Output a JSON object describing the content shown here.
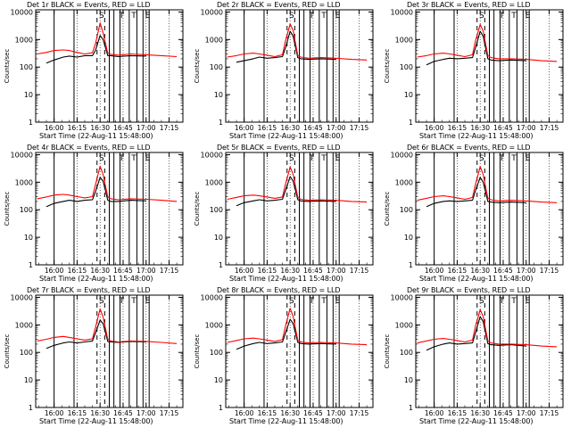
{
  "colors": {
    "events": "#000000",
    "lld": "#ff0000",
    "axes": "#000000",
    "background": "#ffffff"
  },
  "chart_data": [
    {
      "type": "line",
      "title": "Det 1r BLACK = Events, RED = LLD",
      "xlabel": "Start Time (22-Aug-11 15:48:00)",
      "ylabel": "Counts/sec",
      "xticks": [
        "16:00",
        "16:15",
        "16:30",
        "16:45",
        "17:00",
        "17:15"
      ],
      "yticks": [
        "1",
        "10",
        "100",
        "1000",
        "10000"
      ],
      "ylim": [
        1,
        12000
      ],
      "yscale": "log",
      "x": [
        "15:49",
        "15:55",
        "16:00",
        "16:06",
        "16:10",
        "16:15",
        "16:20",
        "16:25",
        "16:27",
        "16:30",
        "16:32",
        "16:35",
        "16:37",
        "16:42",
        "16:50",
        "17:00",
        "17:10",
        "17:20"
      ],
      "series": [
        {
          "name": "Events",
          "values": [
            null,
            140,
            180,
            230,
            250,
            230,
            260,
            260,
            400,
            1400,
            1000,
            260,
            260,
            240,
            260,
            250,
            null,
            null
          ]
        },
        {
          "name": "LLD",
          "values": [
            300,
            340,
            400,
            420,
            400,
            340,
            300,
            330,
            700,
            4000,
            1700,
            320,
            290,
            270,
            300,
            280,
            260,
            240
          ]
        }
      ]
    },
    {
      "type": "line",
      "title": "Det 2r BLACK = Events, RED = LLD",
      "xlabel": "Start Time (22-Aug-11 15:48:00)",
      "ylabel": "Counts/sec",
      "xticks": [
        "16:00",
        "16:15",
        "16:30",
        "16:45",
        "17:00",
        "17:15"
      ],
      "yticks": [
        "1",
        "10",
        "100",
        "1000",
        "10000"
      ],
      "ylim": [
        1,
        12000
      ],
      "yscale": "log",
      "x": [
        "15:49",
        "15:55",
        "16:00",
        "16:06",
        "16:10",
        "16:15",
        "16:20",
        "16:25",
        "16:27",
        "16:30",
        "16:32",
        "16:35",
        "16:37",
        "16:42",
        "16:50",
        "17:00",
        "17:10",
        "17:20"
      ],
      "series": [
        {
          "name": "Events",
          "values": [
            null,
            150,
            170,
            200,
            230,
            210,
            220,
            240,
            500,
            2000,
            1300,
            220,
            200,
            190,
            200,
            190,
            null,
            null
          ]
        },
        {
          "name": "LLD",
          "values": [
            230,
            260,
            300,
            320,
            300,
            270,
            240,
            280,
            900,
            3700,
            2100,
            260,
            230,
            210,
            220,
            210,
            190,
            180
          ]
        }
      ]
    },
    {
      "type": "line",
      "title": "Det 3r BLACK = Events, RED = LLD",
      "xlabel": "Start Time (22-Aug-11 15:48:00)",
      "ylabel": "Counts/sec",
      "xticks": [
        "16:00",
        "16:15",
        "16:30",
        "16:45",
        "17:00",
        "17:15"
      ],
      "yticks": [
        "1",
        "10",
        "100",
        "1000",
        "10000"
      ],
      "ylim": [
        1,
        12000
      ],
      "yscale": "log",
      "x": [
        "15:49",
        "15:55",
        "16:00",
        "16:06",
        "16:10",
        "16:15",
        "16:20",
        "16:25",
        "16:27",
        "16:30",
        "16:32",
        "16:35",
        "16:37",
        "16:42",
        "16:50",
        "17:00",
        "17:10",
        "17:20"
      ],
      "series": [
        {
          "name": "Events",
          "values": [
            null,
            120,
            160,
            190,
            210,
            200,
            210,
            220,
            500,
            2000,
            1300,
            200,
            180,
            170,
            180,
            170,
            null,
            null
          ]
        },
        {
          "name": "LLD",
          "values": [
            230,
            260,
            300,
            320,
            300,
            270,
            240,
            280,
            900,
            3500,
            2000,
            260,
            220,
            200,
            200,
            190,
            170,
            160
          ]
        }
      ]
    },
    {
      "type": "line",
      "title": "Det 4r BLACK = Events, RED = LLD",
      "xlabel": "Start Time (22-Aug-11 15:48:00)",
      "ylabel": "Counts/sec",
      "xticks": [
        "16:00",
        "16:15",
        "16:30",
        "16:45",
        "17:00",
        "17:15"
      ],
      "yticks": [
        "1",
        "10",
        "100",
        "1000",
        "10000"
      ],
      "ylim": [
        1,
        12000
      ],
      "yscale": "log",
      "x": [
        "15:49",
        "15:55",
        "16:00",
        "16:06",
        "16:10",
        "16:15",
        "16:20",
        "16:25",
        "16:27",
        "16:30",
        "16:32",
        "16:35",
        "16:37",
        "16:42",
        "16:50",
        "17:00",
        "17:10",
        "17:20"
      ],
      "series": [
        {
          "name": "Events",
          "values": [
            null,
            130,
            170,
            200,
            220,
            200,
            220,
            230,
            450,
            1500,
            1100,
            220,
            200,
            200,
            220,
            210,
            null,
            null
          ]
        },
        {
          "name": "LLD",
          "values": [
            250,
            290,
            340,
            360,
            340,
            300,
            270,
            300,
            800,
            3800,
            1900,
            290,
            250,
            230,
            250,
            240,
            220,
            200
          ]
        }
      ]
    },
    {
      "type": "line",
      "title": "Det 5r BLACK = Events, RED = LLD",
      "xlabel": "Start Time (22-Aug-11 15:48:00)",
      "ylabel": "Counts/sec",
      "xticks": [
        "16:00",
        "16:15",
        "16:30",
        "16:45",
        "17:00",
        "17:15"
      ],
      "yticks": [
        "1",
        "10",
        "100",
        "1000",
        "10000"
      ],
      "ylim": [
        1,
        12000
      ],
      "yscale": "log",
      "x": [
        "15:49",
        "15:55",
        "16:00",
        "16:06",
        "16:10",
        "16:15",
        "16:20",
        "16:25",
        "16:27",
        "16:30",
        "16:32",
        "16:35",
        "16:37",
        "16:42",
        "16:50",
        "17:00",
        "17:10",
        "17:20"
      ],
      "series": [
        {
          "name": "Events",
          "values": [
            null,
            140,
            180,
            210,
            230,
            210,
            220,
            240,
            500,
            1600,
            1100,
            230,
            210,
            200,
            210,
            200,
            null,
            null
          ]
        },
        {
          "name": "LLD",
          "values": [
            240,
            280,
            320,
            340,
            320,
            290,
            260,
            290,
            850,
            3600,
            1900,
            280,
            240,
            220,
            230,
            220,
            200,
            190
          ]
        }
      ]
    },
    {
      "type": "line",
      "title": "Det 6r BLACK = Events, RED = LLD",
      "xlabel": "Start Time (22-Aug-11 15:48:00)",
      "ylabel": "Counts/sec",
      "xticks": [
        "16:00",
        "16:15",
        "16:30",
        "16:45",
        "17:00",
        "17:15"
      ],
      "yticks": [
        "1",
        "10",
        "100",
        "1000",
        "10000"
      ],
      "ylim": [
        1,
        12000
      ],
      "yscale": "log",
      "x": [
        "15:49",
        "15:55",
        "16:00",
        "16:06",
        "16:10",
        "16:15",
        "16:20",
        "16:25",
        "16:27",
        "16:30",
        "16:32",
        "16:35",
        "16:37",
        "16:42",
        "16:50",
        "17:00",
        "17:10",
        "17:20"
      ],
      "series": [
        {
          "name": "Events",
          "values": [
            null,
            130,
            170,
            200,
            210,
            200,
            210,
            220,
            500,
            1500,
            1000,
            200,
            190,
            180,
            190,
            180,
            null,
            null
          ]
        },
        {
          "name": "LLD",
          "values": [
            220,
            260,
            300,
            320,
            300,
            270,
            240,
            280,
            850,
            3700,
            1900,
            260,
            230,
            210,
            220,
            210,
            190,
            180
          ]
        }
      ]
    },
    {
      "type": "line",
      "title": "Det 7r BLACK = Events, RED = LLD",
      "xlabel": "Start Time (22-Aug-11 15:48:00)",
      "ylabel": "Counts/sec",
      "xticks": [
        "16:00",
        "16:15",
        "16:30",
        "16:45",
        "17:00",
        "17:15"
      ],
      "yticks": [
        "1",
        "10",
        "100",
        "1000",
        "10000"
      ],
      "ylim": [
        1,
        12000
      ],
      "yscale": "log",
      "x": [
        "15:49",
        "15:55",
        "16:00",
        "16:06",
        "16:10",
        "16:15",
        "16:20",
        "16:25",
        "16:27",
        "16:30",
        "16:32",
        "16:35",
        "16:37",
        "16:42",
        "16:50",
        "17:00",
        "17:10",
        "17:20"
      ],
      "series": [
        {
          "name": "Events",
          "values": [
            null,
            140,
            180,
            220,
            240,
            220,
            240,
            260,
            500,
            1500,
            1100,
            250,
            240,
            230,
            250,
            240,
            null,
            null
          ]
        },
        {
          "name": "LLD",
          "values": [
            260,
            300,
            350,
            380,
            350,
            310,
            280,
            310,
            800,
            3800,
            1900,
            300,
            260,
            240,
            260,
            250,
            230,
            210
          ]
        }
      ]
    },
    {
      "type": "line",
      "title": "Det 8r BLACK = Events, RED = LLD",
      "xlabel": "Start Time (22-Aug-11 15:48:00)",
      "ylabel": "Counts/sec",
      "xticks": [
        "16:00",
        "16:15",
        "16:30",
        "16:45",
        "17:00",
        "17:15"
      ],
      "yticks": [
        "1",
        "10",
        "100",
        "1000",
        "10000"
      ],
      "ylim": [
        1,
        12000
      ],
      "yscale": "log",
      "x": [
        "15:49",
        "15:55",
        "16:00",
        "16:06",
        "16:10",
        "16:15",
        "16:20",
        "16:25",
        "16:27",
        "16:30",
        "16:32",
        "16:35",
        "16:37",
        "16:42",
        "16:50",
        "17:00",
        "17:10",
        "17:20"
      ],
      "series": [
        {
          "name": "Events",
          "values": [
            null,
            130,
            170,
            210,
            230,
            210,
            220,
            240,
            500,
            1600,
            1100,
            230,
            210,
            200,
            210,
            200,
            null,
            null
          ]
        },
        {
          "name": "LLD",
          "values": [
            230,
            270,
            310,
            330,
            310,
            280,
            250,
            290,
            900,
            4000,
            2000,
            270,
            240,
            220,
            230,
            220,
            200,
            190
          ]
        }
      ]
    },
    {
      "type": "line",
      "title": "Det 9r BLACK = Events, RED = LLD",
      "xlabel": "Start Time (22-Aug-11 15:48:00)",
      "ylabel": "Counts/sec",
      "xticks": [
        "16:00",
        "16:15",
        "16:30",
        "16:45",
        "17:00",
        "17:15"
      ],
      "yticks": [
        "1",
        "10",
        "100",
        "1000",
        "10000"
      ],
      "ylim": [
        1,
        12000
      ],
      "yscale": "log",
      "x": [
        "15:49",
        "15:55",
        "16:00",
        "16:06",
        "16:10",
        "16:15",
        "16:20",
        "16:25",
        "16:27",
        "16:30",
        "16:32",
        "16:35",
        "16:37",
        "16:42",
        "16:50",
        "17:00",
        "17:10",
        "17:20"
      ],
      "series": [
        {
          "name": "Events",
          "values": [
            null,
            120,
            160,
            200,
            220,
            200,
            210,
            220,
            520,
            2000,
            1300,
            210,
            190,
            180,
            190,
            170,
            null,
            null
          ]
        },
        {
          "name": "LLD",
          "values": [
            220,
            260,
            300,
            320,
            300,
            270,
            240,
            280,
            900,
            3600,
            2000,
            260,
            220,
            200,
            200,
            190,
            170,
            160
          ]
        }
      ]
    }
  ],
  "annotations": {
    "markers": [
      "S",
      "T",
      "T",
      "E"
    ]
  }
}
